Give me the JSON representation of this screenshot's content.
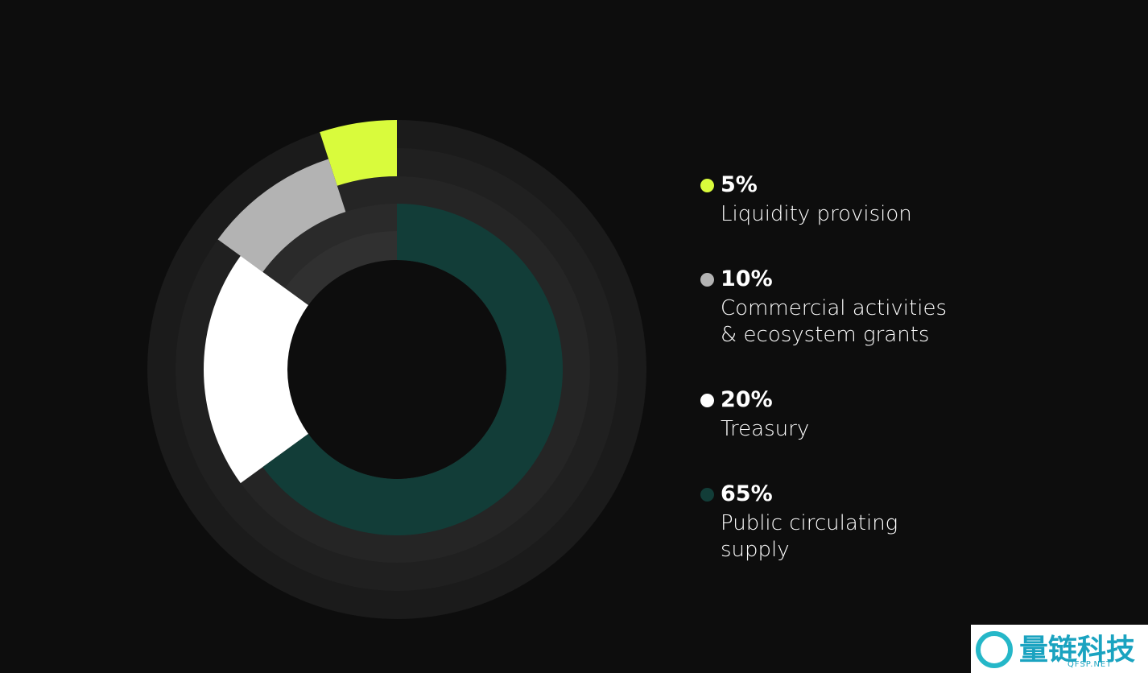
{
  "chart_data": {
    "type": "donut",
    "categories": [
      [
        "Liquidity provision"
      ],
      [
        "Commercial activities",
        "& ecosystem grants"
      ],
      [
        "Treasury"
      ],
      [
        "Public circulating",
        "supply"
      ]
    ],
    "values": [
      5,
      10,
      20,
      65
    ],
    "value_labels": [
      "5%",
      "10%",
      "20%",
      "65%"
    ],
    "colors": [
      "#d9fb3c",
      "#b3b3b3",
      "#ffffff",
      "#123d38"
    ]
  },
  "watermark": {
    "text": "量链科技",
    "sub": "QFSP.NET"
  }
}
